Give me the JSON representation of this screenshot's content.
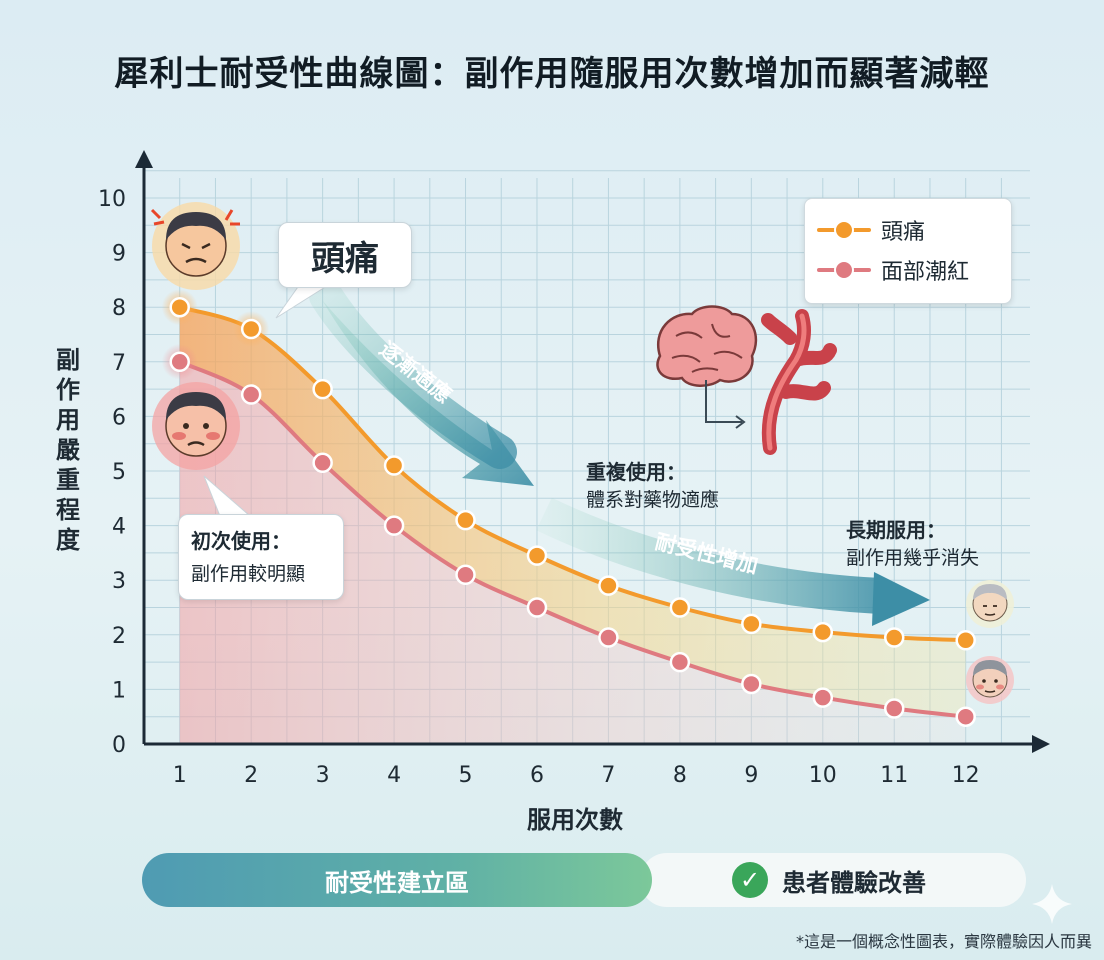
{
  "title": "犀利士耐受性曲線圖：副作用隨服用次數增加而顯著減輕",
  "legend": {
    "items": [
      {
        "label": "頭痛",
        "color": "#f39a2c"
      },
      {
        "label": "面部潮紅",
        "color": "#df7a80"
      }
    ]
  },
  "callouts": {
    "headache": "頭痛",
    "first_title": "初次使用：",
    "first_sub": "副作用較明顯",
    "repeat_title": "重複使用：",
    "repeat_sub": "體系對藥物適應",
    "long_title": "長期服用：",
    "long_sub": "副作用幾乎消失"
  },
  "arrows": {
    "adapt": "逐漸適應",
    "tolerance": "耐受性增加"
  },
  "banner": {
    "left": "耐受性建立區",
    "right": "患者體驗改善"
  },
  "footnote": "*這是一個概念性圖表，實際體驗因人而異",
  "icons": [
    "stressed-face-icon",
    "flushed-face-icon",
    "brain-icon",
    "blood-vessel-icon",
    "calm-face-icon",
    "check-icon",
    "sparkle-icon"
  ],
  "chart_data": {
    "type": "line",
    "title": "犀利士耐受性曲線圖：副作用隨服用次數增加而顯著減輕",
    "xlabel": "服用次數",
    "ylabel": "副作用嚴重程度",
    "x": [
      1,
      2,
      3,
      4,
      5,
      6,
      7,
      8,
      9,
      10,
      11,
      12
    ],
    "xlim": [
      0.5,
      12.9
    ],
    "ylim": [
      0,
      10
    ],
    "yticks": [
      0,
      1,
      2,
      3,
      4,
      5,
      6,
      7,
      8,
      9,
      10
    ],
    "grid": true,
    "legend_position": "top-right",
    "series": [
      {
        "name": "頭痛",
        "color": "#f39a2c",
        "values": [
          8.0,
          7.6,
          6.5,
          5.1,
          4.1,
          3.45,
          2.9,
          2.5,
          2.2,
          2.05,
          1.95,
          1.9
        ]
      },
      {
        "name": "面部潮紅",
        "color": "#df7a80",
        "values": [
          7.0,
          6.4,
          5.15,
          4.0,
          3.1,
          2.5,
          1.95,
          1.5,
          1.1,
          0.85,
          0.65,
          0.5
        ]
      }
    ]
  }
}
